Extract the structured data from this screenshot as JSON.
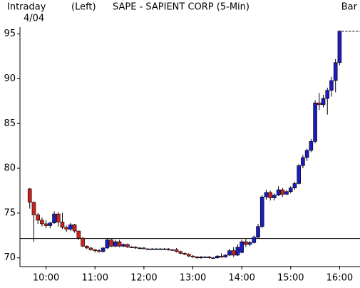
{
  "chart_data": {
    "type": "candlestick",
    "title": "SAPE - SAPIENT CORP (5-Min)",
    "header_left": "Intraday",
    "date": "4/04",
    "axis_side": "(Left)",
    "chart_style": "Bar",
    "x": [
      580,
      585,
      590,
      595,
      600,
      605,
      610,
      615,
      620,
      625,
      630,
      635,
      640,
      645,
      650,
      655,
      660,
      665,
      670,
      675,
      680,
      685,
      690,
      695,
      700,
      705,
      710,
      715,
      720,
      725,
      730,
      735,
      740,
      745,
      750,
      755,
      760,
      765,
      770,
      775,
      780,
      785,
      790,
      795,
      800,
      805,
      810,
      815,
      820,
      825,
      830,
      835,
      840,
      845,
      850,
      855,
      860,
      865,
      870,
      875,
      880,
      885,
      890,
      895,
      900,
      905,
      910,
      915,
      920,
      925,
      930,
      935,
      940,
      945,
      950,
      955,
      960
    ],
    "open": [
      77.7,
      76.2,
      74.8,
      74.2,
      73.8,
      73.6,
      73.9,
      74.9,
      74,
      73.4,
      73.2,
      73.7,
      73,
      72.2,
      71.3,
      71.1,
      70.9,
      70.8,
      70.7,
      71.1,
      72,
      71.3,
      71.8,
      71.3,
      71.5,
      71.2,
      71.2,
      71.1,
      71.1,
      71,
      71,
      71,
      71,
      71,
      71,
      70.9,
      70.9,
      70.7,
      70.5,
      70.4,
      70.2,
      70.1,
      70,
      70.1,
      70.1,
      70,
      70,
      70.2,
      70.1,
      70.3,
      70.8,
      70.3,
      70.6,
      71.8,
      71.5,
      71.7,
      72.3,
      73.5,
      76.8,
      77.3,
      76.7,
      77,
      77.6,
      77.1,
      77.4,
      77.8,
      78.3,
      80.3,
      81.2,
      82,
      83,
      87.3,
      87.1,
      87.8,
      88.7,
      89.8,
      91.8
    ],
    "high": [
      77.8,
      76.3,
      75,
      74.5,
      74.2,
      74,
      75.2,
      75.1,
      75,
      73.6,
      73.9,
      73.8,
      73,
      72.3,
      71.4,
      71.2,
      71,
      71,
      71.2,
      72.2,
      72.1,
      72,
      72,
      71.6,
      71.6,
      71.3,
      71.3,
      71.2,
      71.2,
      71.1,
      71.1,
      71.1,
      71.1,
      71.1,
      71.1,
      71,
      71.1,
      70.8,
      70.6,
      70.5,
      70.3,
      70.2,
      70.2,
      70.2,
      70.2,
      70.1,
      70.3,
      70.5,
      70.4,
      71,
      71.2,
      71.5,
      72,
      72.1,
      71.9,
      72.5,
      73.8,
      77,
      77.6,
      77.5,
      77.2,
      78,
      77.8,
      77.6,
      78,
      78.5,
      80.5,
      81.5,
      82.2,
      83.3,
      87.6,
      88.4,
      88.2,
      89,
      90.2,
      92.2,
      95.4
    ],
    "low": [
      75.5,
      71.8,
      73.8,
      73.5,
      73.3,
      73.3,
      73.8,
      73.5,
      73.2,
      72.9,
      73,
      72.8,
      72,
      71.2,
      71,
      70.8,
      70.6,
      70.6,
      70.6,
      71,
      71.2,
      71.2,
      71.2,
      71.2,
      71.1,
      71.1,
      71,
      71,
      71,
      70.9,
      70.9,
      70.9,
      70.9,
      70.9,
      70.8,
      70.8,
      70.6,
      70.4,
      70.3,
      70.1,
      70,
      69.9,
      69.9,
      70,
      69.9,
      69.9,
      69.9,
      70,
      70,
      70.2,
      70.1,
      70.2,
      70.5,
      71.2,
      71.3,
      71.6,
      72.2,
      73.3,
      76.5,
      76.4,
      76.4,
      76.9,
      76.8,
      77,
      77.2,
      77.6,
      78.2,
      80,
      80.8,
      81.8,
      82.8,
      86.5,
      86.8,
      86,
      88,
      88.5,
      91.5
    ],
    "close": [
      76.2,
      74.8,
      74.2,
      73.8,
      73.6,
      73.9,
      74.9,
      74,
      73.4,
      73.2,
      73.7,
      73,
      72.2,
      71.3,
      71.1,
      70.9,
      70.8,
      70.7,
      71.1,
      72,
      71.3,
      71.8,
      71.3,
      71.5,
      71.2,
      71.2,
      71.1,
      71.1,
      71,
      71,
      71,
      71,
      71,
      71,
      70.9,
      70.9,
      70.7,
      70.5,
      70.4,
      70.2,
      70.1,
      70,
      70.1,
      70.1,
      70,
      70,
      70.2,
      70.1,
      70.3,
      70.8,
      70.3,
      71.2,
      71.8,
      71.5,
      71.7,
      72.3,
      73.5,
      76.8,
      77.3,
      76.7,
      77,
      77.6,
      77.1,
      77.4,
      77.8,
      78.3,
      80.3,
      81.2,
      82,
      83,
      87.3,
      87.1,
      87.8,
      88.7,
      89.8,
      91.8,
      95.3
    ],
    "up_color": "#1c1cc0",
    "down_color": "#cc2222",
    "reference_line": 72.15,
    "xlim": [
      568,
      985
    ],
    "xticks": [
      {
        "value": 600,
        "label": "10:00"
      },
      {
        "value": 660,
        "label": "11:00"
      },
      {
        "value": 720,
        "label": "12:00"
      },
      {
        "value": 780,
        "label": "13:00"
      },
      {
        "value": 840,
        "label": "14:00"
      },
      {
        "value": 900,
        "label": "15:00"
      },
      {
        "value": 960,
        "label": "16:00"
      }
    ],
    "ylim": [
      69.1,
      97.2
    ],
    "yticks": [
      70,
      75,
      80,
      85,
      90,
      95
    ]
  }
}
